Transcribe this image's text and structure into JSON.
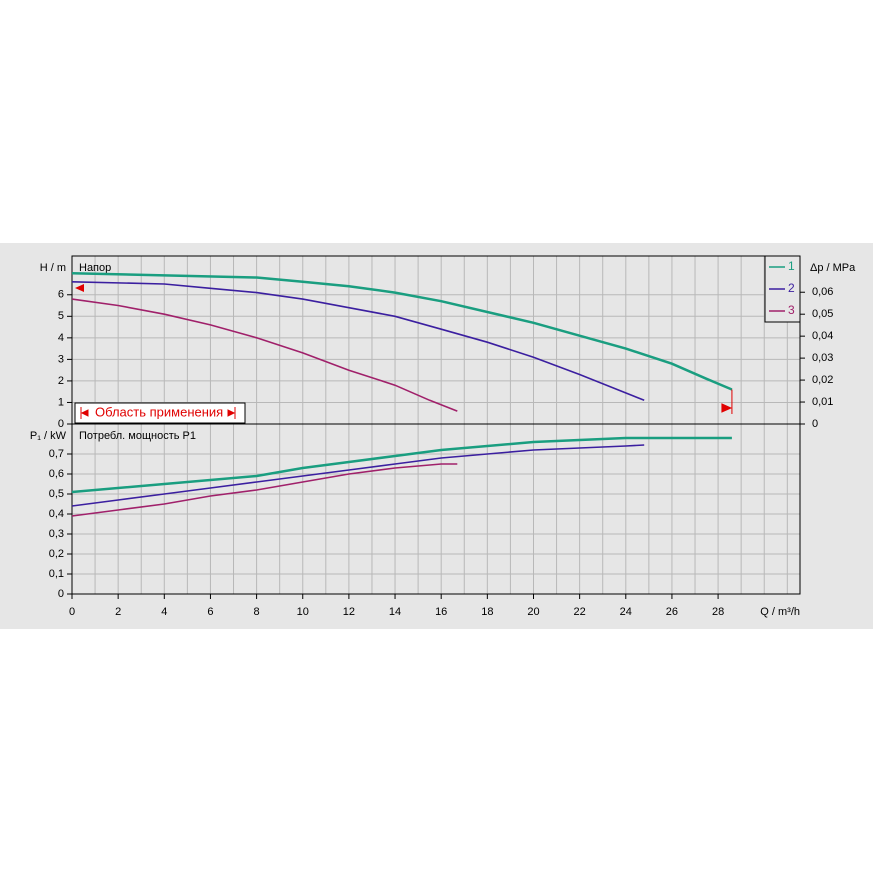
{
  "chart_data": [
    {
      "type": "line",
      "y_label": "H / m",
      "panel_label": "Напор",
      "y2_label": "Δp / MPa",
      "annotation": "Область применения",
      "xlim": [
        0,
        31.55
      ],
      "xticks": [
        0,
        2,
        4,
        6,
        8,
        10,
        12,
        14,
        16,
        18,
        20,
        22,
        24,
        26,
        28
      ],
      "ylim": [
        0,
        7.8
      ],
      "yticks": [
        0,
        1,
        2,
        3,
        4,
        5,
        6
      ],
      "y2lim": [
        0,
        0.0765
      ],
      "y2ticks": [
        0,
        {
          "value": 0.01,
          "label": "0,01"
        },
        {
          "value": 0.02,
          "label": "0,02"
        },
        {
          "value": 0.03,
          "label": "0,03"
        },
        {
          "value": 0.04,
          "label": "0,04"
        },
        {
          "value": 0.05,
          "label": "0,05"
        },
        {
          "value": 0.06,
          "label": "0,06"
        }
      ],
      "grid": true,
      "legend": "top-right",
      "series": [
        {
          "name": "1",
          "color": "#1a9e80",
          "x": [
            0,
            4,
            8,
            10,
            12,
            14,
            16,
            18,
            20,
            22,
            24,
            26,
            27.5,
            28.6
          ],
          "values": [
            7.0,
            6.9,
            6.8,
            6.6,
            6.4,
            6.1,
            5.7,
            5.2,
            4.7,
            4.1,
            3.5,
            2.8,
            2.1,
            1.6
          ]
        },
        {
          "name": "2",
          "color": "#3b1fa0",
          "x": [
            0,
            4,
            6,
            8,
            10,
            12,
            14,
            16,
            18,
            20,
            22,
            24.8
          ],
          "values": [
            6.6,
            6.5,
            6.3,
            6.1,
            5.8,
            5.4,
            5.0,
            4.4,
            3.8,
            3.1,
            2.3,
            1.1
          ]
        },
        {
          "name": "3",
          "color": "#a0206a",
          "x": [
            0,
            2,
            4,
            6,
            8,
            10,
            12,
            14,
            15.5,
            16.7
          ],
          "values": [
            5.8,
            5.5,
            5.1,
            4.6,
            4.0,
            3.3,
            2.5,
            1.8,
            1.1,
            0.6
          ]
        }
      ]
    },
    {
      "type": "line",
      "y_label": "P₁ / kW",
      "panel_label": "Потребл. мощность P1",
      "x_label": "Q / m³/h",
      "xlim": [
        0,
        31.55
      ],
      "xticks": [
        0,
        2,
        4,
        6,
        8,
        10,
        12,
        14,
        16,
        18,
        20,
        22,
        24,
        26,
        28
      ],
      "ylim": [
        0,
        0.85
      ],
      "yticks": [
        0,
        {
          "value": 0.1,
          "label": "0,1"
        },
        {
          "value": 0.2,
          "label": "0,2"
        },
        {
          "value": 0.3,
          "label": "0,3"
        },
        {
          "value": 0.4,
          "label": "0,4"
        },
        {
          "value": 0.5,
          "label": "0,5"
        },
        {
          "value": 0.6,
          "label": "0,6"
        },
        {
          "value": 0.7,
          "label": "0,7"
        }
      ],
      "grid": true,
      "series": [
        {
          "color": "#1a9e80",
          "x": [
            0,
            4,
            8,
            10,
            12,
            14,
            16,
            18,
            20,
            22,
            24,
            26,
            28.6
          ],
          "values": [
            0.51,
            0.55,
            0.59,
            0.63,
            0.66,
            0.69,
            0.72,
            0.74,
            0.76,
            0.77,
            0.78,
            0.78,
            0.78
          ]
        },
        {
          "color": "#3b1fa0",
          "x": [
            0,
            2,
            4,
            6,
            8,
            10,
            12,
            14,
            16,
            18,
            20,
            22,
            24,
            24.8
          ],
          "values": [
            0.44,
            0.47,
            0.5,
            0.53,
            0.56,
            0.59,
            0.62,
            0.65,
            0.68,
            0.7,
            0.72,
            0.73,
            0.74,
            0.745
          ]
        },
        {
          "color": "#a0206a",
          "x": [
            0,
            2,
            4,
            6,
            8,
            10,
            12,
            14,
            16,
            16.7
          ],
          "values": [
            0.39,
            0.42,
            0.45,
            0.49,
            0.52,
            0.56,
            0.6,
            0.63,
            0.65,
            0.65
          ]
        }
      ]
    }
  ]
}
